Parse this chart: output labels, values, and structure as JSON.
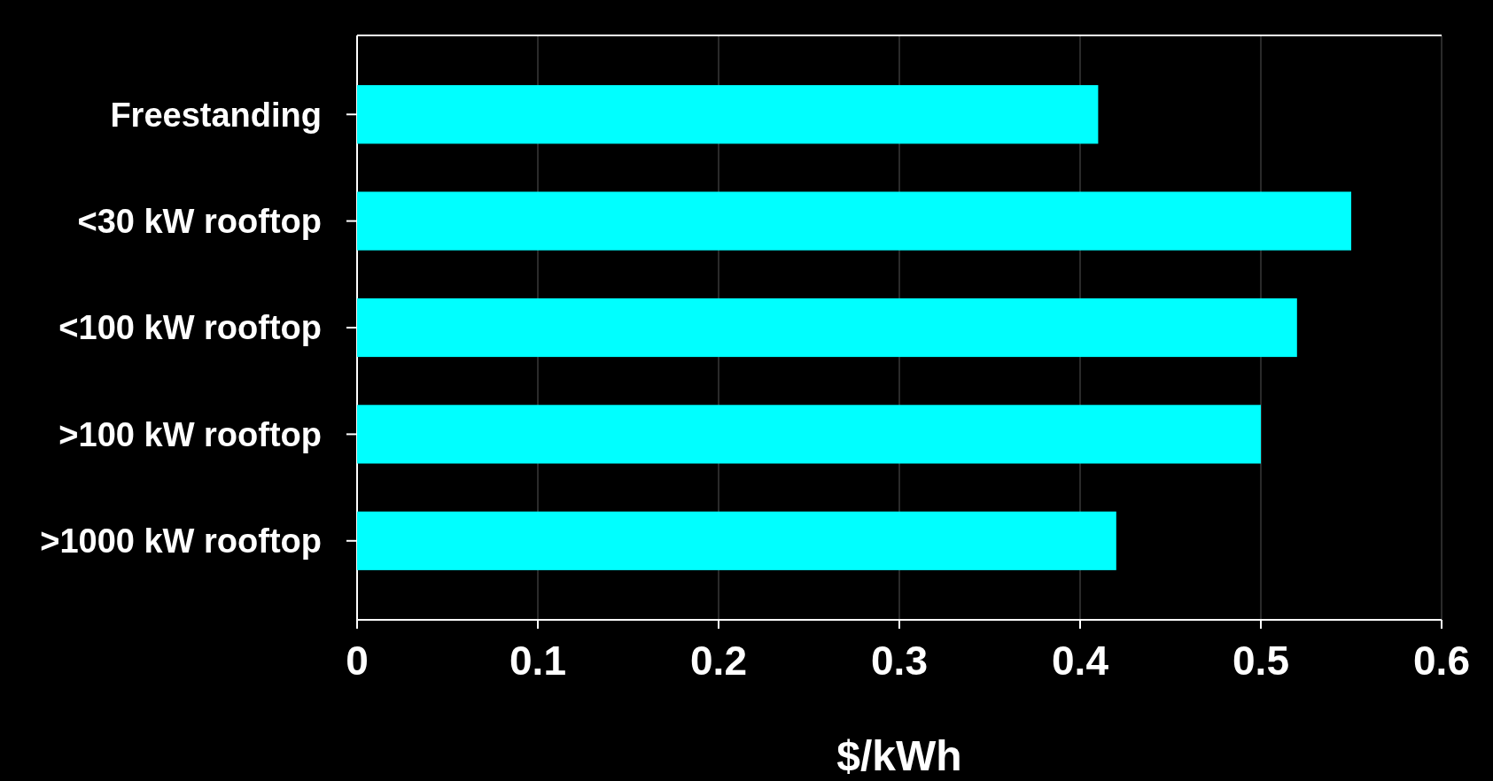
{
  "chart_data": {
    "type": "bar",
    "orientation": "horizontal",
    "xlabel": "$/kWh",
    "categories": [
      "Freestanding",
      "<30 kW rooftop",
      "<100 kW rooftop",
      ">100 kW rooftop",
      ">1000 kW rooftop"
    ],
    "values": [
      0.41,
      0.55,
      0.52,
      0.5,
      0.42
    ],
    "color": "#00ffff",
    "xlim": [
      0,
      0.6
    ],
    "xticks": [
      0,
      0.1,
      0.2,
      0.3,
      0.4,
      0.5,
      0.6
    ],
    "grid": "x"
  }
}
